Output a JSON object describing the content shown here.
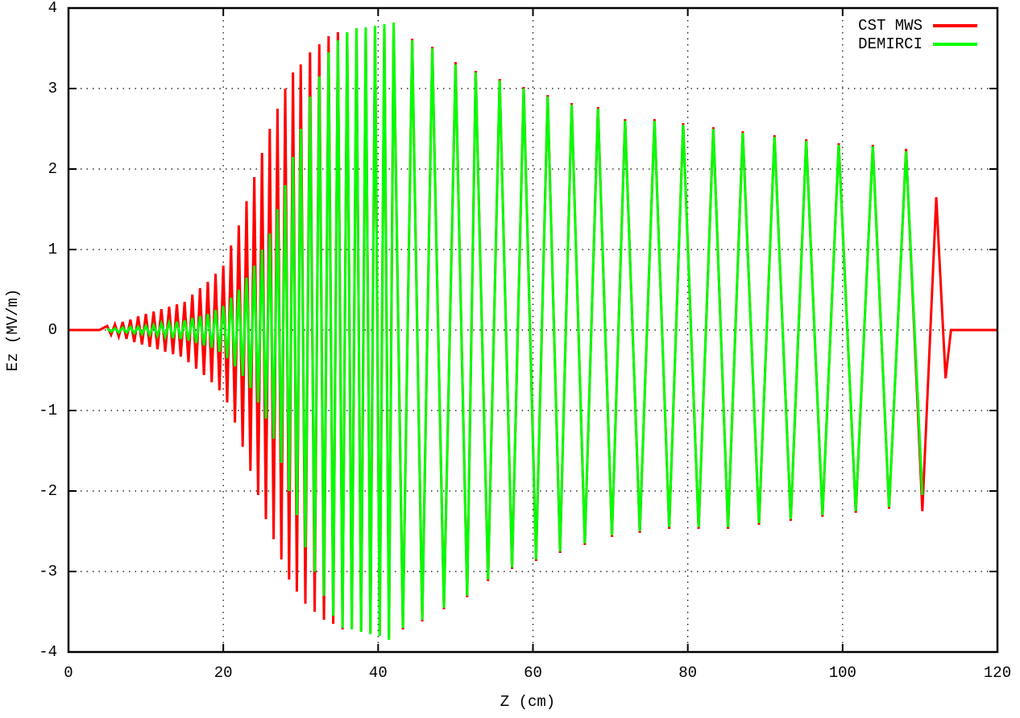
{
  "chart_data": {
    "type": "line",
    "xlabel": "Z (cm)",
    "ylabel": "Ez (MV/m)",
    "xlim": [
      0,
      120
    ],
    "xticks": [
      0,
      20,
      40,
      60,
      80,
      100,
      120
    ],
    "ylim": [
      -4,
      4
    ],
    "yticks": [
      -4,
      -3,
      -2,
      -1,
      0,
      1,
      2,
      3,
      4
    ],
    "grid": true,
    "legend": "top-right",
    "x": [
      0,
      4,
      5,
      5.5,
      6,
      6.5,
      7,
      7.5,
      8,
      8.5,
      9,
      9.5,
      10,
      10.5,
      11,
      11.5,
      12,
      12.5,
      13,
      13.5,
      14,
      14.5,
      15,
      15.5,
      16,
      16.5,
      17,
      17.5,
      18,
      18.5,
      19,
      19.5,
      20,
      20.5,
      21,
      21.5,
      22,
      22.5,
      23,
      23.5,
      24,
      24.5,
      25,
      25.5,
      26,
      26.5,
      27,
      27.5,
      28,
      28.5,
      29,
      29.5,
      30,
      30.6,
      31.2,
      31.8,
      32.4,
      33,
      33.6,
      34.2,
      34.8,
      35.4,
      36,
      36.6,
      37.2,
      37.8,
      38.4,
      39,
      39.6,
      40.2,
      40.8,
      41.4,
      42,
      43.2,
      44.4,
      45.7,
      47,
      48.5,
      50,
      51.5,
      52.6,
      54.2,
      55.7,
      57.3,
      58.8,
      60.4,
      61.9,
      63.5,
      65,
      66.7,
      68.4,
      70.2,
      71.9,
      73.8,
      75.7,
      77.6,
      79.4,
      81.4,
      83.3,
      85.2,
      87.1,
      89.2,
      91.2,
      93.3,
      95.3,
      97.4,
      99.5,
      101.7,
      103.9,
      106,
      108.2,
      110.3,
      112.1,
      113.3,
      114,
      120
    ],
    "series": [
      {
        "name": "CST MWS",
        "color": "#ff0000",
        "values": [
          0,
          0,
          0.05,
          -0.06,
          0.07,
          -0.08,
          0.1,
          -0.11,
          0.13,
          -0.15,
          0.17,
          -0.18,
          0.2,
          -0.21,
          0.23,
          -0.24,
          0.26,
          -0.27,
          0.29,
          -0.3,
          0.32,
          -0.33,
          0.35,
          -0.4,
          0.44,
          -0.48,
          0.52,
          -0.56,
          0.6,
          -0.65,
          0.7,
          -0.75,
          0.8,
          -0.9,
          1.05,
          -1.15,
          1.3,
          -1.45,
          1.6,
          -1.75,
          1.9,
          -2.05,
          2.2,
          -2.35,
          2.5,
          -2.6,
          2.75,
          -2.85,
          3.0,
          -3.1,
          3.2,
          -3.25,
          3.3,
          -3.4,
          3.45,
          -3.5,
          3.55,
          -3.6,
          3.65,
          -3.65,
          3.7,
          -3.72,
          3.7,
          -3.72,
          3.72,
          -3.75,
          3.74,
          -3.76,
          3.76,
          -3.78,
          3.78,
          -3.82,
          3.8,
          -3.72,
          3.62,
          -3.62,
          3.52,
          -3.47,
          3.33,
          -3.32,
          3.22,
          -3.12,
          3.12,
          -2.97,
          3.02,
          -2.87,
          2.92,
          -2.77,
          2.82,
          -2.67,
          2.77,
          -2.57,
          2.62,
          -2.52,
          2.62,
          -2.47,
          2.57,
          -2.47,
          2.52,
          -2.47,
          2.47,
          -2.42,
          2.42,
          -2.37,
          2.37,
          -2.32,
          2.32,
          -2.27,
          2.3,
          -2.22,
          2.25,
          -2.25,
          1.65,
          -0.6,
          0,
          0
        ]
      },
      {
        "name": "DEMIRCI",
        "color": "#00ff00",
        "values": [
          null,
          null,
          0.02,
          -0.02,
          0.02,
          -0.03,
          0.03,
          -0.03,
          0.04,
          -0.04,
          0.04,
          -0.05,
          0.05,
          -0.06,
          0.06,
          -0.07,
          0.08,
          -0.08,
          0.09,
          -0.1,
          0.1,
          -0.11,
          0.12,
          -0.13,
          0.15,
          -0.16,
          0.17,
          -0.19,
          0.2,
          -0.22,
          0.25,
          -0.27,
          0.3,
          -0.35,
          0.4,
          -0.45,
          0.5,
          -0.57,
          0.65,
          -0.72,
          0.8,
          -0.9,
          1.0,
          -1.1,
          1.2,
          -1.35,
          1.5,
          -1.65,
          1.8,
          -2.0,
          2.15,
          -2.3,
          2.5,
          -2.7,
          2.9,
          -3.0,
          3.15,
          -3.3,
          3.45,
          -3.55,
          3.6,
          -3.7,
          3.7,
          -3.72,
          3.75,
          -3.75,
          3.76,
          -3.78,
          3.78,
          -3.8,
          3.8,
          -3.85,
          3.82,
          -3.7,
          3.6,
          -3.6,
          3.5,
          -3.45,
          3.3,
          -3.3,
          3.2,
          -3.1,
          3.1,
          -2.95,
          3.0,
          -2.85,
          2.9,
          -2.75,
          2.8,
          -2.65,
          2.75,
          -2.55,
          2.6,
          -2.5,
          2.6,
          -2.45,
          2.55,
          -2.45,
          2.5,
          -2.45,
          2.45,
          -2.4,
          2.4,
          -2.35,
          2.35,
          -2.3,
          2.3,
          -2.25,
          2.28,
          -2.2,
          2.22,
          -2.05,
          null,
          null,
          null,
          null
        ]
      }
    ]
  }
}
